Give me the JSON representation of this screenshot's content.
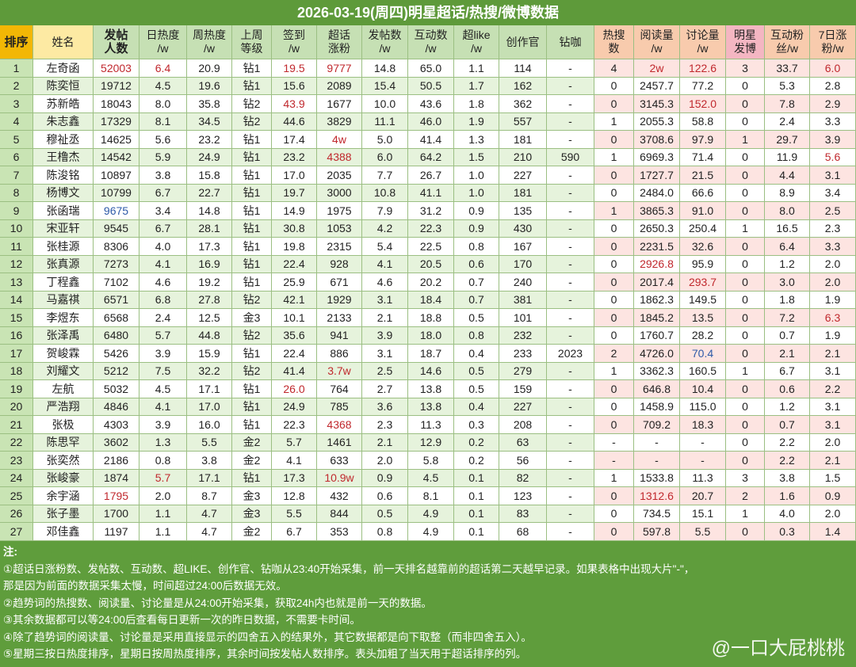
{
  "title": "2026-03-19(周四)明星超话/热搜/微博数据",
  "table": {
    "header": [
      [
        "排序"
      ],
      [
        "姓名"
      ],
      [
        "发帖",
        "人数"
      ],
      [
        "日热度",
        "/w"
      ],
      [
        "周热度",
        "/w"
      ],
      [
        "上周",
        "等级"
      ],
      [
        "签到",
        "/w"
      ],
      [
        "超话",
        "涨粉"
      ],
      [
        "发帖数",
        "/w"
      ],
      [
        "互动数",
        "/w"
      ],
      [
        "超like",
        "/w"
      ],
      [
        "创作官"
      ],
      [
        "钻咖"
      ],
      [
        "热搜",
        "数"
      ],
      [
        "阅读量",
        "/w"
      ],
      [
        "讨论量",
        "/w"
      ],
      [
        "明星",
        "发博"
      ],
      [
        "互动粉",
        "丝/w"
      ],
      [
        "7日涨",
        "粉/w"
      ]
    ],
    "rows": [
      [
        "1",
        "左奇函",
        "52003",
        "6.4",
        "20.9",
        "钻1",
        "19.5",
        "9777",
        "14.8",
        "65.0",
        "1.1",
        "114",
        "-",
        "4",
        "2w",
        "122.6",
        "3",
        "33.7",
        "6.0"
      ],
      [
        "2",
        "陈奕恒",
        "19712",
        "4.5",
        "19.6",
        "钻1",
        "15.6",
        "2089",
        "15.4",
        "50.5",
        "1.7",
        "162",
        "-",
        "0",
        "2457.7",
        "77.2",
        "0",
        "5.3",
        "2.8"
      ],
      [
        "3",
        "苏新皓",
        "18043",
        "8.0",
        "35.8",
        "钻2",
        "43.9",
        "1677",
        "10.0",
        "43.6",
        "1.8",
        "362",
        "-",
        "0",
        "3145.3",
        "152.0",
        "0",
        "7.8",
        "2.9"
      ],
      [
        "4",
        "朱志鑫",
        "17329",
        "8.1",
        "34.5",
        "钻2",
        "44.6",
        "3829",
        "11.1",
        "46.0",
        "1.9",
        "557",
        "-",
        "1",
        "2055.3",
        "58.8",
        "0",
        "2.4",
        "3.3"
      ],
      [
        "5",
        "穆祉丞",
        "14625",
        "5.6",
        "23.2",
        "钻1",
        "17.4",
        "4w",
        "5.0",
        "41.4",
        "1.3",
        "181",
        "-",
        "0",
        "3708.6",
        "97.9",
        "1",
        "29.7",
        "3.9"
      ],
      [
        "6",
        "王橹杰",
        "14542",
        "5.9",
        "24.9",
        "钻1",
        "23.2",
        "4388",
        "6.0",
        "64.2",
        "1.5",
        "210",
        "590",
        "1",
        "6969.3",
        "71.4",
        "0",
        "11.9",
        "5.6"
      ],
      [
        "7",
        "陈浚铭",
        "10897",
        "3.8",
        "15.8",
        "钻1",
        "17.0",
        "2035",
        "7.7",
        "26.7",
        "1.0",
        "227",
        "-",
        "0",
        "1727.7",
        "21.5",
        "0",
        "4.4",
        "3.1"
      ],
      [
        "8",
        "杨博文",
        "10799",
        "6.7",
        "22.7",
        "钻1",
        "19.7",
        "3000",
        "10.8",
        "41.1",
        "1.0",
        "181",
        "-",
        "0",
        "2484.0",
        "66.6",
        "0",
        "8.9",
        "3.4"
      ],
      [
        "9",
        "张函瑞",
        "9675",
        "3.4",
        "14.8",
        "钻1",
        "14.9",
        "1975",
        "7.9",
        "31.2",
        "0.9",
        "135",
        "-",
        "1",
        "3865.3",
        "91.0",
        "0",
        "8.0",
        "2.5"
      ],
      [
        "10",
        "宋亚轩",
        "9545",
        "6.7",
        "28.1",
        "钻1",
        "30.8",
        "1053",
        "4.2",
        "22.3",
        "0.9",
        "430",
        "-",
        "0",
        "2650.3",
        "250.4",
        "1",
        "16.5",
        "2.3"
      ],
      [
        "11",
        "张桂源",
        "8306",
        "4.0",
        "17.3",
        "钻1",
        "19.8",
        "2315",
        "5.4",
        "22.5",
        "0.8",
        "167",
        "-",
        "0",
        "2231.5",
        "32.6",
        "0",
        "6.4",
        "3.3"
      ],
      [
        "12",
        "张真源",
        "7273",
        "4.1",
        "16.9",
        "钻1",
        "22.4",
        "928",
        "4.1",
        "20.5",
        "0.6",
        "170",
        "-",
        "0",
        "2926.8",
        "95.9",
        "0",
        "1.2",
        "2.0"
      ],
      [
        "13",
        "丁程鑫",
        "7102",
        "4.6",
        "19.2",
        "钻1",
        "25.9",
        "671",
        "4.6",
        "20.2",
        "0.7",
        "240",
        "-",
        "0",
        "2017.4",
        "293.7",
        "0",
        "3.0",
        "2.0"
      ],
      [
        "14",
        "马嘉祺",
        "6571",
        "6.8",
        "27.8",
        "钻2",
        "42.1",
        "1929",
        "3.1",
        "18.4",
        "0.7",
        "381",
        "-",
        "0",
        "1862.3",
        "149.5",
        "0",
        "1.8",
        "1.9"
      ],
      [
        "15",
        "李煜东",
        "6568",
        "2.4",
        "12.5",
        "金3",
        "10.1",
        "2133",
        "2.1",
        "18.8",
        "0.5",
        "101",
        "-",
        "0",
        "1845.2",
        "13.5",
        "0",
        "7.2",
        "6.3"
      ],
      [
        "16",
        "张泽禹",
        "6480",
        "5.7",
        "44.8",
        "钻2",
        "35.6",
        "941",
        "3.9",
        "18.0",
        "0.8",
        "232",
        "-",
        "0",
        "1760.7",
        "28.2",
        "0",
        "0.7",
        "1.9"
      ],
      [
        "17",
        "贺峻霖",
        "5426",
        "3.9",
        "15.9",
        "钻1",
        "22.4",
        "886",
        "3.1",
        "18.7",
        "0.4",
        "233",
        "2023",
        "2",
        "4726.0",
        "70.4",
        "0",
        "2.1",
        "2.1"
      ],
      [
        "18",
        "刘耀文",
        "5212",
        "7.5",
        "32.2",
        "钻2",
        "41.4",
        "3.7w",
        "2.5",
        "14.6",
        "0.5",
        "279",
        "-",
        "1",
        "3362.3",
        "160.5",
        "1",
        "6.7",
        "3.1"
      ],
      [
        "19",
        "左航",
        "5032",
        "4.5",
        "17.1",
        "钻1",
        "26.0",
        "764",
        "2.7",
        "13.8",
        "0.5",
        "159",
        "-",
        "0",
        "646.8",
        "10.4",
        "0",
        "0.6",
        "2.2"
      ],
      [
        "20",
        "严浩翔",
        "4846",
        "4.1",
        "17.0",
        "钻1",
        "24.9",
        "785",
        "3.6",
        "13.8",
        "0.4",
        "227",
        "-",
        "0",
        "1458.9",
        "115.0",
        "0",
        "1.2",
        "3.1"
      ],
      [
        "21",
        "张极",
        "4303",
        "3.9",
        "16.0",
        "钻1",
        "22.3",
        "4368",
        "2.3",
        "11.3",
        "0.3",
        "208",
        "-",
        "0",
        "709.2",
        "18.3",
        "0",
        "0.7",
        "3.1"
      ],
      [
        "22",
        "陈思罕",
        "3602",
        "1.3",
        "5.5",
        "金2",
        "5.7",
        "1461",
        "2.1",
        "12.9",
        "0.2",
        "63",
        "-",
        "-",
        "-",
        "-",
        "0",
        "2.2",
        "2.0"
      ],
      [
        "23",
        "张奕然",
        "2186",
        "0.8",
        "3.8",
        "金2",
        "4.1",
        "633",
        "2.0",
        "5.8",
        "0.2",
        "56",
        "-",
        "-",
        "-",
        "-",
        "0",
        "2.2",
        "2.1"
      ],
      [
        "24",
        "张峻豪",
        "1874",
        "5.7",
        "17.1",
        "钻1",
        "17.3",
        "10.9w",
        "0.9",
        "4.5",
        "0.1",
        "82",
        "-",
        "1",
        "1533.8",
        "11.3",
        "3",
        "3.8",
        "1.5"
      ],
      [
        "25",
        "余宇涵",
        "1795",
        "2.0",
        "8.7",
        "金3",
        "12.8",
        "432",
        "0.6",
        "8.1",
        "0.1",
        "123",
        "-",
        "0",
        "1312.6",
        "20.7",
        "2",
        "1.6",
        "0.9"
      ],
      [
        "26",
        "张子墨",
        "1700",
        "1.1",
        "4.7",
        "金3",
        "5.5",
        "844",
        "0.5",
        "4.9",
        "0.1",
        "83",
        "-",
        "0",
        "734.5",
        "15.1",
        "1",
        "4.0",
        "2.0"
      ],
      [
        "27",
        "邓佳鑫",
        "1197",
        "1.1",
        "4.7",
        "金2",
        "6.7",
        "353",
        "0.8",
        "4.9",
        "0.1",
        "68",
        "-",
        "0",
        "597.8",
        "5.5",
        "0",
        "0.3",
        "1.4"
      ]
    ]
  },
  "notes": [
    "注:",
    "①超话日涨粉数、发帖数、互动数、超LIKE、创作官、钻咖从23:40开始采集，前一天排名越靠前的超话第二天越早记录。如果表格中出现大片\"-\"，",
    "那是因为前面的数据采集太慢，时间超过24:00后数据无效。",
    "②趋势词的热搜数、阅读量、讨论量是从24:00开始采集，获取24h内也就是前一天的数据。",
    "③其余数据都可以等24:00后查看每日更新一次的昨日数据，不需要卡时间。",
    "④除了趋势词的阅读量、讨论量是采用直接显示的四舍五入的结果外，其它数据都是向下取整（而非四舍五入）。",
    "⑤星期三按日热度排序，星期日按周热度排序，其余时间按发帖人数排序。表头加粗了当天用于超话排序的列。"
  ],
  "watermark": "@一口大屁桃桃"
}
